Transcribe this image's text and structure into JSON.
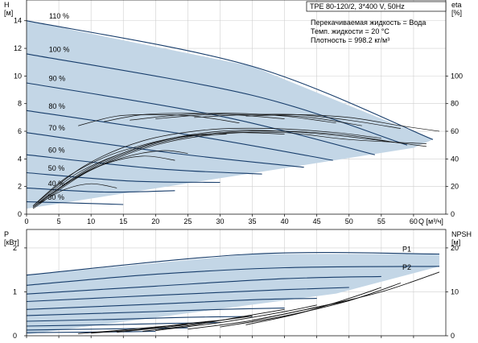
{
  "info": {
    "model": "TPE 80-120/2, 3*400 V, 50Hz",
    "liquid": "Перекачиваемая жидкость = Вода",
    "temp": "Темп. жидкости = 20 °C",
    "density": "Плотность = 998.2 кг/м³"
  },
  "chart_data": [
    {
      "type": "line",
      "xlabel": "Q [м³/ч]",
      "ylabel": "H\n[м]",
      "y2label": "eta\n[%]",
      "xticks": [
        0,
        5,
        10,
        15,
        20,
        25,
        30,
        35,
        40,
        45,
        50,
        55,
        60
      ],
      "yticks": [
        0,
        2,
        4,
        6,
        8,
        10,
        12,
        14
      ],
      "y2ticks": [
        0,
        20,
        40,
        60,
        80,
        100
      ],
      "xlim": [
        0,
        65
      ],
      "ylim": [
        0,
        15.5
      ],
      "y2lim": [
        0,
        155
      ],
      "grid": true,
      "speed_labels": [
        "110 %",
        "100 %",
        "90 %",
        "80 %",
        "70 %",
        "60 %",
        "50 %",
        "40 %",
        "30 %"
      ],
      "envelope": {
        "x": [
          0,
          35,
          63,
          60,
          0
        ],
        "y": [
          14.0,
          10.7,
          5.4,
          4.8,
          0.4
        ]
      },
      "series": [
        {
          "x": [
            0,
            35,
            63
          ],
          "y": [
            14.0,
            10.7,
            5.4
          ]
        },
        {
          "x": [
            0,
            35,
            59
          ],
          "y": [
            11.6,
            8.6,
            5.0
          ]
        },
        {
          "x": [
            0,
            30,
            54
          ],
          "y": [
            9.5,
            7.1,
            4.3
          ]
        },
        {
          "x": [
            0,
            27,
            47.5
          ],
          "y": [
            7.5,
            5.6,
            3.9
          ]
        },
        {
          "x": [
            0,
            23,
            43
          ],
          "y": [
            5.9,
            4.4,
            3.4
          ]
        },
        {
          "x": [
            0,
            20,
            36.5
          ],
          "y": [
            4.3,
            3.3,
            2.9
          ]
        },
        {
          "x": [
            0,
            16,
            30
          ],
          "y": [
            3.0,
            2.4,
            2.3
          ]
        },
        {
          "x": [
            0,
            12,
            23
          ],
          "y": [
            1.9,
            1.6,
            1.7
          ]
        },
        {
          "x": [
            0,
            8,
            15
          ],
          "y": [
            0.9,
            0.8,
            0.7
          ]
        }
      ],
      "efficiency": [
        {
          "x": [
            1,
            10,
            20,
            30,
            40,
            50,
            57
          ],
          "y": [
            0.5,
            3.3,
            5.1,
            5.9,
            6.0,
            5.7,
            5.2
          ]
        },
        {
          "x": [
            1,
            10,
            20,
            30,
            40,
            50,
            62
          ],
          "y": [
            0.5,
            3.4,
            5.2,
            6.0,
            6.0,
            5.6,
            4.9
          ]
        },
        {
          "x": [
            1,
            10,
            20,
            30,
            40,
            50,
            62
          ],
          "y": [
            0.4,
            3.2,
            5.0,
            5.8,
            5.9,
            5.4,
            5.1
          ]
        },
        {
          "x": [
            1,
            9,
            18,
            28,
            38,
            48,
            55
          ],
          "y": [
            0.6,
            3.5,
            5.3,
            6.1,
            6.2,
            5.9,
            5.5
          ]
        },
        {
          "x": [
            1,
            8,
            16,
            24,
            32,
            40
          ],
          "y": [
            0.5,
            3.0,
            4.6,
            5.6,
            5.9,
            5.8
          ]
        },
        {
          "x": [
            1,
            6,
            12,
            18,
            24,
            31
          ],
          "y": [
            0.6,
            2.6,
            4.1,
            5.0,
            5.6,
            5.8
          ]
        },
        {
          "x": [
            8,
            14,
            20,
            26,
            33
          ],
          "y": [
            6.4,
            7.1,
            7.2,
            7.1,
            6.6
          ]
        },
        {
          "x": [
            12,
            18,
            25,
            32,
            40
          ],
          "y": [
            6.7,
            7.2,
            7.3,
            7.2,
            6.9
          ]
        },
        {
          "x": [
            16,
            24,
            32,
            40,
            48
          ],
          "y": [
            6.8,
            7.2,
            7.3,
            7.1,
            6.6
          ]
        },
        {
          "x": [
            20,
            28,
            36,
            44,
            52
          ],
          "y": [
            6.9,
            7.2,
            7.2,
            7.0,
            6.4
          ]
        },
        {
          "x": [
            26,
            34,
            42,
            50,
            58
          ],
          "y": [
            7.0,
            7.2,
            7.2,
            6.8,
            6.2
          ]
        },
        {
          "x": [
            34,
            42,
            50,
            58,
            64
          ],
          "y": [
            7.1,
            7.2,
            7.0,
            6.4,
            6.0
          ]
        },
        {
          "x": [
            6,
            12,
            18,
            23
          ],
          "y": [
            2.2,
            3.6,
            4.2,
            3.9
          ]
        },
        {
          "x": [
            2,
            6,
            10,
            14
          ],
          "y": [
            0.8,
            1.8,
            2.2,
            1.9
          ]
        },
        {
          "x": [
            3,
            9,
            15,
            21,
            25
          ],
          "y": [
            1.2,
            3.0,
            4.1,
            4.6,
            4.4
          ]
        }
      ]
    },
    {
      "type": "line",
      "ylabel": "P\n[кВт]",
      "y2label": "NPSH\n[м]",
      "yticks": [
        0,
        1,
        2
      ],
      "y2ticks": [
        0,
        10,
        20
      ],
      "xlim": [
        0,
        65
      ],
      "ylim": [
        0,
        2.42
      ],
      "y2lim": [
        0,
        24.2
      ],
      "grid": true,
      "series_labels": [
        "P1",
        "P2"
      ],
      "envelope": {
        "x": [
          0,
          35,
          64,
          64,
          48,
          0
        ],
        "y": [
          1.38,
          1.86,
          1.86,
          1.58,
          0.96,
          0.03
        ]
      },
      "series": [
        {
          "x": [
            0,
            35,
            64
          ],
          "y": [
            1.38,
            1.86,
            1.86
          ]
        },
        {
          "x": [
            0,
            20,
            40,
            64
          ],
          "y": [
            1.15,
            1.4,
            1.55,
            1.58
          ]
        },
        {
          "x": [
            0,
            20,
            40,
            55
          ],
          "y": [
            0.95,
            1.13,
            1.3,
            1.35
          ]
        },
        {
          "x": [
            0,
            20,
            40,
            50
          ],
          "y": [
            0.78,
            0.92,
            1.05,
            1.1
          ]
        },
        {
          "x": [
            0,
            20,
            35,
            45
          ],
          "y": [
            0.6,
            0.72,
            0.82,
            0.85
          ]
        },
        {
          "x": [
            0,
            20,
            30,
            40
          ],
          "y": [
            0.46,
            0.55,
            0.6,
            0.63
          ]
        },
        {
          "x": [
            0,
            15,
            25,
            35
          ],
          "y": [
            0.33,
            0.38,
            0.42,
            0.44
          ]
        },
        {
          "x": [
            0,
            12,
            22,
            30
          ],
          "y": [
            0.22,
            0.25,
            0.28,
            0.3
          ]
        },
        {
          "x": [
            0,
            10,
            20,
            25
          ],
          "y": [
            0.13,
            0.15,
            0.17,
            0.18
          ]
        },
        {
          "x": [
            0,
            8,
            15,
            20
          ],
          "y": [
            0.07,
            0.08,
            0.09,
            0.1
          ]
        }
      ],
      "npsh": [
        {
          "x": [
            30,
            40,
            50,
            58
          ],
          "y": [
            0.2,
            0.45,
            0.8,
            1.2
          ]
        },
        {
          "x": [
            34,
            42,
            50,
            55
          ],
          "y": [
            0.25,
            0.5,
            0.85,
            1.1
          ]
        },
        {
          "x": [
            25,
            35,
            45,
            50
          ],
          "y": [
            0.15,
            0.35,
            0.65,
            0.8
          ]
        },
        {
          "x": [
            20,
            30,
            40,
            45
          ],
          "y": [
            0.12,
            0.3,
            0.55,
            0.7
          ]
        },
        {
          "x": [
            18,
            26,
            34,
            40
          ],
          "y": [
            0.1,
            0.25,
            0.45,
            0.6
          ]
        },
        {
          "x": [
            14,
            22,
            30,
            35
          ],
          "y": [
            0.08,
            0.2,
            0.35,
            0.45
          ]
        },
        {
          "x": [
            10,
            18,
            25,
            30
          ],
          "y": [
            0.06,
            0.15,
            0.28,
            0.35
          ]
        },
        {
          "x": [
            8,
            14,
            20,
            25
          ],
          "y": [
            0.05,
            0.12,
            0.2,
            0.26
          ]
        },
        {
          "x": [
            35,
            45,
            55,
            64
          ],
          "y": [
            0.35,
            0.65,
            1.0,
            1.45
          ]
        }
      ]
    }
  ]
}
